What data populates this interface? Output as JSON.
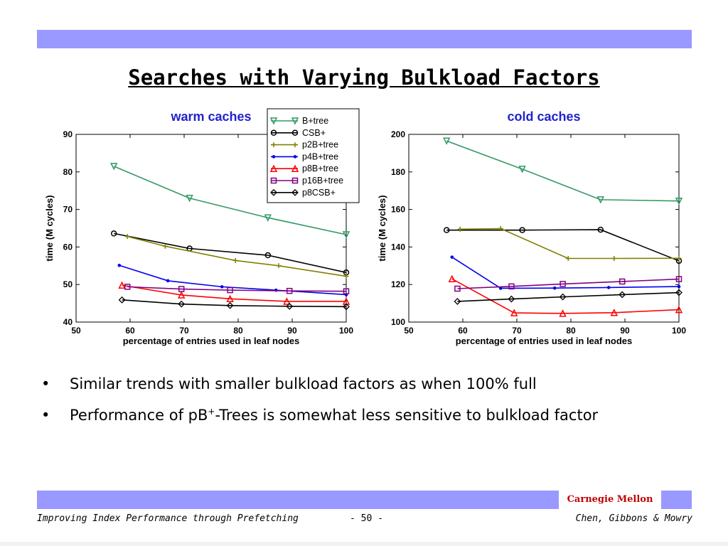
{
  "slide": {
    "title": "Searches with Varying Bulkload Factors",
    "bullets": [
      {
        "marker": "•",
        "text": "Similar trends with smaller bulkload factors as when 100% full"
      },
      {
        "marker": "•",
        "pre": "Performance of pB",
        "sup": "+",
        "post": "-Trees is somewhat less sensitive to bulkload factor"
      }
    ],
    "footer": {
      "left": "Improving Index Performance through Prefetching",
      "center": "- 50 -",
      "right": "Chen, Gibbons & Mowry",
      "brand": "Carnegie Mellon"
    },
    "colors": {
      "accent_bar": "#9999ff",
      "brand": "#c00000",
      "chart_title": "#2222cc"
    }
  },
  "chart_data": [
    {
      "type": "line",
      "title": "warm caches",
      "xlabel": "percentage of entries used in leaf nodes",
      "ylabel": "time (M cycles)",
      "xlim": [
        50,
        100
      ],
      "ylim": [
        40,
        90
      ],
      "xticks": [
        50,
        60,
        70,
        80,
        90,
        100
      ],
      "yticks": [
        40,
        50,
        60,
        70,
        80,
        90
      ],
      "grid": false,
      "series": [
        {
          "name": "B+tree",
          "color": "#339966",
          "marker": "triangle-down",
          "points": [
            [
              57,
              81.5
            ],
            [
              71,
              73
            ],
            [
              85.5,
              67.8
            ],
            [
              100,
              63.3
            ]
          ]
        },
        {
          "name": "CSB+",
          "color": "#000000",
          "marker": "circle",
          "points": [
            [
              57,
              63.6
            ],
            [
              71,
              59.6
            ],
            [
              85.5,
              57.8
            ],
            [
              100,
              53.2
            ]
          ]
        },
        {
          "name": "p2B+tree",
          "color": "#808000",
          "marker": "plus",
          "points": [
            [
              59.5,
              62.8
            ],
            [
              66.5,
              60.2
            ],
            [
              79.5,
              56.4
            ],
            [
              87.5,
              55
            ],
            [
              100,
              52.2
            ]
          ]
        },
        {
          "name": "p4B+tree",
          "color": "#0000ee",
          "marker": "point",
          "points": [
            [
              58,
              55.1
            ],
            [
              67,
              51
            ],
            [
              77,
              49.4
            ],
            [
              87,
              48.5
            ],
            [
              100,
              47.3
            ]
          ]
        },
        {
          "name": "p8B+tree",
          "color": "#ff0000",
          "marker": "triangle-up",
          "points": [
            [
              58.5,
              49.8
            ],
            [
              69.5,
              47.2
            ],
            [
              78.5,
              46.2
            ],
            [
              89,
              45.5
            ],
            [
              100,
              45.5
            ]
          ]
        },
        {
          "name": "p16B+tree",
          "color": "#800080",
          "marker": "square",
          "points": [
            [
              59.5,
              49.4
            ],
            [
              69.5,
              48.8
            ],
            [
              78.5,
              48.5
            ],
            [
              89.5,
              48.3
            ],
            [
              100,
              48.2
            ]
          ]
        },
        {
          "name": "p8CSB+",
          "color": "#000000",
          "marker": "diamond",
          "points": [
            [
              58.5,
              45.9
            ],
            [
              69.5,
              44.8
            ],
            [
              78.5,
              44.4
            ],
            [
              89.5,
              44.2
            ],
            [
              100,
              44.1
            ]
          ]
        }
      ]
    },
    {
      "type": "line",
      "title": "cold caches",
      "xlabel": "percentage of entries used in leaf nodes",
      "ylabel": "time (M cycles)",
      "xlim": [
        50,
        100
      ],
      "ylim": [
        100,
        200
      ],
      "xticks": [
        50,
        60,
        70,
        80,
        90,
        100
      ],
      "yticks": [
        100,
        120,
        140,
        160,
        180,
        200
      ],
      "grid": false,
      "series": [
        {
          "name": "B+tree",
          "color": "#339966",
          "marker": "triangle-down",
          "points": [
            [
              57,
              196.5
            ],
            [
              71,
              181.5
            ],
            [
              85.5,
              165.2
            ],
            [
              100,
              164.5
            ]
          ]
        },
        {
          "name": "CSB+",
          "color": "#000000",
          "marker": "circle",
          "points": [
            [
              57,
              149
            ],
            [
              71,
              149
            ],
            [
              85.5,
              149.2
            ],
            [
              100,
              132.6
            ]
          ]
        },
        {
          "name": "p2B+tree",
          "color": "#808000",
          "marker": "plus",
          "points": [
            [
              59.5,
              149.5
            ],
            [
              67,
              149.8
            ],
            [
              79.5,
              133.9
            ],
            [
              88,
              133.9
            ],
            [
              100,
              134
            ]
          ]
        },
        {
          "name": "p4B+tree",
          "color": "#0000ee",
          "marker": "point",
          "points": [
            [
              58,
              134.6
            ],
            [
              67,
              118
            ],
            [
              77,
              118.1
            ],
            [
              87,
              118.4
            ],
            [
              100,
              118.9
            ]
          ]
        },
        {
          "name": "p8B+tree",
          "color": "#ff0000",
          "marker": "triangle-up",
          "points": [
            [
              58,
              123
            ],
            [
              69.5,
              104.9
            ],
            [
              78.5,
              104.6
            ],
            [
              88,
              105
            ],
            [
              100,
              106.6
            ]
          ]
        },
        {
          "name": "p16B+tree",
          "color": "#800080",
          "marker": "square",
          "points": [
            [
              59,
              117.8
            ],
            [
              69,
              119
            ],
            [
              78.5,
              120.3
            ],
            [
              89.5,
              121.6
            ],
            [
              100,
              122.9
            ]
          ]
        },
        {
          "name": "p8CSB+",
          "color": "#000000",
          "marker": "diamond",
          "points": [
            [
              59,
              111
            ],
            [
              69,
              112.3
            ],
            [
              78.5,
              113.4
            ],
            [
              89.5,
              114.6
            ],
            [
              100,
              115.7
            ]
          ]
        }
      ]
    }
  ]
}
